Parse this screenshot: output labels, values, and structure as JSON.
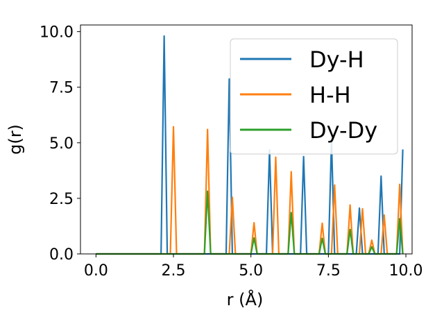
{
  "chart_data": {
    "type": "line",
    "xlabel": "r (Å)",
    "ylabel": "g(r)",
    "xlim": [
      -0.5,
      10.2
    ],
    "ylim": [
      0,
      10.3
    ],
    "x_ticks": [
      0.0,
      2.5,
      5.0,
      7.5,
      10.0
    ],
    "x_tick_labels": [
      "0.0",
      "2.5",
      "5.0",
      "7.5",
      "10.0"
    ],
    "y_ticks": [
      0.0,
      2.5,
      5.0,
      7.5,
      10.0
    ],
    "y_tick_labels": [
      "0.0",
      "2.5",
      "5.0",
      "7.5",
      "10.0"
    ],
    "grid": false,
    "legend_position": "upper right",
    "series": [
      {
        "name": "Dy-H",
        "color": "#1f77b4",
        "peaks": [
          [
            2.2,
            9.8
          ],
          [
            4.3,
            7.87
          ],
          [
            5.6,
            4.68
          ],
          [
            6.7,
            4.38
          ],
          [
            7.6,
            5.1
          ],
          [
            8.5,
            2.06
          ],
          [
            9.2,
            3.5
          ],
          [
            9.9,
            4.7
          ]
        ]
      },
      {
        "name": "H-H",
        "color": "#ff7f0e",
        "peaks": [
          [
            2.5,
            5.72
          ],
          [
            3.6,
            5.6
          ],
          [
            4.4,
            2.55
          ],
          [
            5.1,
            1.4
          ],
          [
            5.8,
            4.35
          ],
          [
            6.3,
            3.7
          ],
          [
            7.3,
            1.38
          ],
          [
            7.7,
            3.1
          ],
          [
            8.2,
            2.2
          ],
          [
            8.6,
            2.03
          ],
          [
            8.9,
            0.62
          ],
          [
            9.3,
            1.75
          ],
          [
            9.8,
            3.13
          ]
        ]
      },
      {
        "name": "Dy-Dy",
        "color": "#2ca02c",
        "peaks": [
          [
            3.6,
            2.82
          ],
          [
            5.1,
            0.72
          ],
          [
            6.3,
            1.86
          ],
          [
            7.3,
            0.7
          ],
          [
            8.2,
            1.1
          ],
          [
            8.9,
            0.32
          ],
          [
            9.8,
            1.58
          ]
        ]
      }
    ]
  }
}
